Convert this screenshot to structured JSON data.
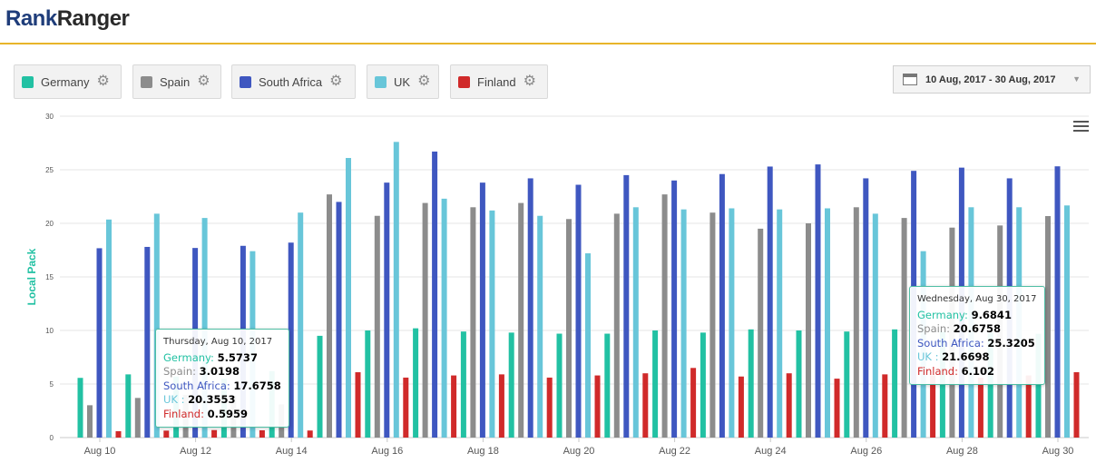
{
  "brand": {
    "part1": "Rank",
    "part2": "Ranger"
  },
  "legend": [
    {
      "label": "Germany",
      "color": "#22c1a3"
    },
    {
      "label": "Spain",
      "color": "#8c8c8c"
    },
    {
      "label": "South Africa",
      "color": "#3f57c0"
    },
    {
      "label": "UK",
      "color": "#68c6d9"
    },
    {
      "label": "Finland",
      "color": "#d02a2a"
    }
  ],
  "date_range": "10 Aug, 2017 - 30 Aug, 2017",
  "icons": {
    "legend_settings": "gear-icon",
    "date_picker": "calendar-icon",
    "dropdown": "caret-down-icon",
    "chart_menu": "hamburger-menu-icon"
  },
  "tooltips": [
    {
      "date": "Thursday, Aug 10, 2017",
      "rows": [
        {
          "name": "Germany",
          "sep": ": ",
          "value": "5.5737",
          "color": "#22c1a3"
        },
        {
          "name": "Spain",
          "sep": ": ",
          "value": "3.0198",
          "color": "#8c8c8c"
        },
        {
          "name": "South Africa",
          "sep": ": ",
          "value": "17.6758",
          "color": "#3f57c0"
        },
        {
          "name": "UK",
          "sep": " : ",
          "value": "20.3553",
          "color": "#68c6d9"
        },
        {
          "name": "Finland",
          "sep": ": ",
          "value": "0.5959",
          "color": "#d02a2a"
        }
      ]
    },
    {
      "date": "Wednesday, Aug 30, 2017",
      "rows": [
        {
          "name": "Germany",
          "sep": ": ",
          "value": "9.6841",
          "color": "#22c1a3"
        },
        {
          "name": "Spain",
          "sep": ": ",
          "value": "20.6758",
          "color": "#8c8c8c"
        },
        {
          "name": "South Africa",
          "sep": ": ",
          "value": "25.3205",
          "color": "#3f57c0"
        },
        {
          "name": "UK",
          "sep": " : ",
          "value": "21.6698",
          "color": "#68c6d9"
        },
        {
          "name": "Finland",
          "sep": ": ",
          "value": "6.102",
          "color": "#d02a2a"
        }
      ]
    }
  ],
  "chart_data": {
    "type": "bar",
    "ylabel": "Local Pack",
    "ylim": [
      0,
      30
    ],
    "yticks": [
      0,
      5,
      10,
      15,
      20,
      25,
      30
    ],
    "grid": true,
    "categories": [
      "Aug 10",
      "Aug 11",
      "Aug 12",
      "Aug 13",
      "Aug 14",
      "Aug 15",
      "Aug 16",
      "Aug 17",
      "Aug 18",
      "Aug 19",
      "Aug 20",
      "Aug 21",
      "Aug 22",
      "Aug 23",
      "Aug 24",
      "Aug 25",
      "Aug 26",
      "Aug 27",
      "Aug 28",
      "Aug 29",
      "Aug 30"
    ],
    "xtick_labels": [
      "Aug 10",
      "Aug 12",
      "Aug 14",
      "Aug 16",
      "Aug 18",
      "Aug 20",
      "Aug 22",
      "Aug 24",
      "Aug 26",
      "Aug 28",
      "Aug 30"
    ],
    "series": [
      {
        "name": "Germany",
        "color": "#22c1a3",
        "values": [
          5.5737,
          5.9,
          5.7,
          5.5,
          6.2,
          9.5,
          10.0,
          10.2,
          9.9,
          9.8,
          9.7,
          9.7,
          10.0,
          9.8,
          10.1,
          10.0,
          9.9,
          10.1,
          9.9,
          9.8,
          9.6841
        ]
      },
      {
        "name": "Spain",
        "color": "#8c8c8c",
        "values": [
          3.0198,
          3.7,
          4.0,
          3.9,
          3.1,
          22.7,
          20.7,
          21.9,
          21.5,
          21.9,
          20.4,
          20.9,
          22.7,
          21.0,
          19.5,
          20.0,
          21.5,
          20.5,
          19.6,
          19.8,
          20.6758
        ]
      },
      {
        "name": "South Africa",
        "color": "#3f57c0",
        "values": [
          17.6758,
          17.8,
          17.7,
          17.9,
          18.2,
          22.0,
          23.8,
          26.7,
          23.8,
          24.2,
          23.6,
          24.5,
          24.0,
          24.6,
          25.3,
          25.5,
          24.2,
          24.9,
          25.2,
          24.2,
          25.3205
        ]
      },
      {
        "name": "UK",
        "color": "#68c6d9",
        "values": [
          20.3553,
          20.9,
          20.5,
          17.4,
          21.0,
          26.1,
          27.6,
          22.3,
          21.2,
          20.7,
          17.2,
          21.5,
          21.3,
          21.4,
          21.3,
          21.4,
          20.9,
          17.4,
          21.5,
          21.5,
          21.6698
        ]
      },
      {
        "name": "Finland",
        "color": "#d02a2a",
        "values": [
          0.5959,
          0.65,
          0.7,
          0.68,
          0.66,
          6.1,
          5.6,
          5.8,
          5.9,
          5.6,
          5.8,
          6.0,
          6.5,
          5.7,
          6.0,
          5.5,
          5.9,
          5.8,
          5.6,
          5.8,
          6.102
        ]
      }
    ]
  }
}
